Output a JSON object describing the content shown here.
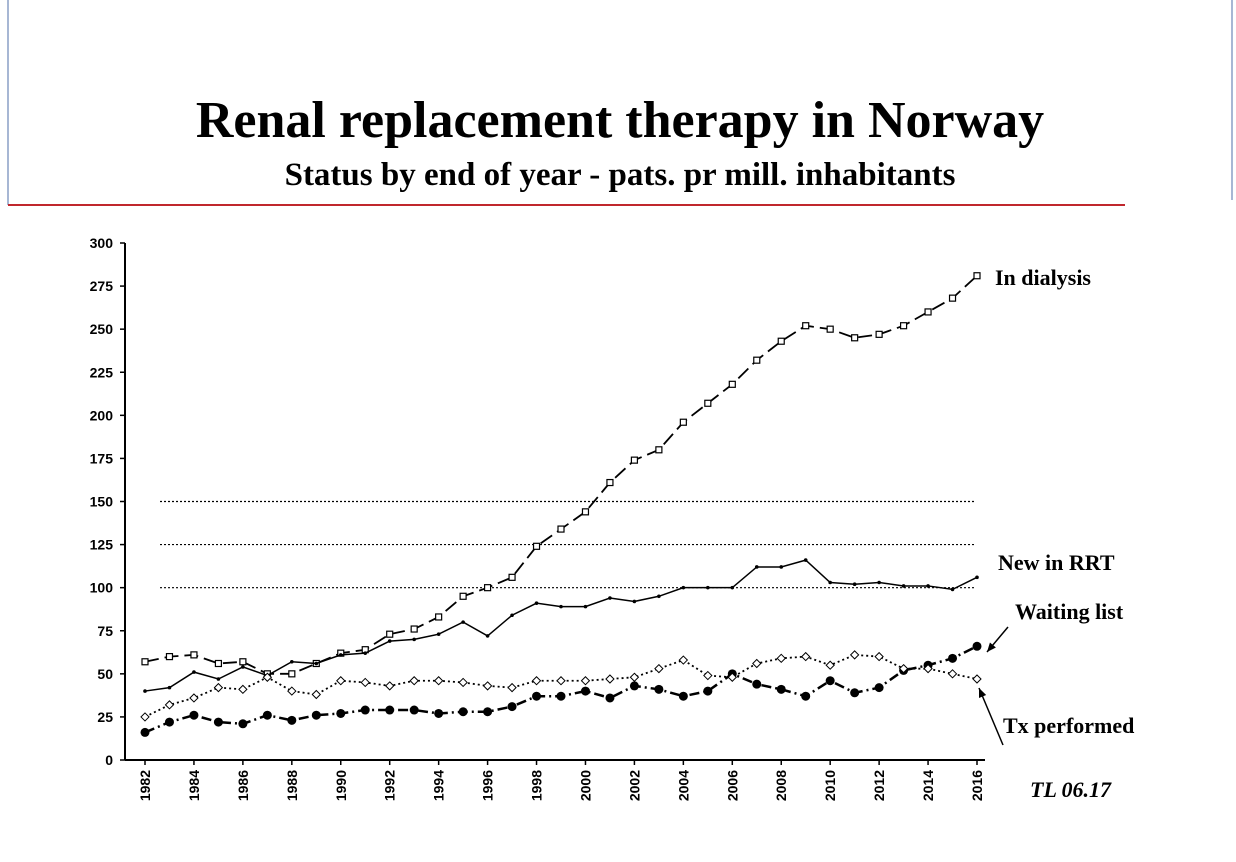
{
  "chart_data": {
    "type": "line",
    "title": "Renal replacement therapy in Norway",
    "subtitle": "Status by end of year - pats. pr mill. inhabitants",
    "note": "TL 06.17",
    "x": [
      1982,
      1983,
      1984,
      1985,
      1986,
      1987,
      1988,
      1989,
      1990,
      1991,
      1992,
      1993,
      1994,
      1995,
      1996,
      1997,
      1998,
      1999,
      2000,
      2001,
      2002,
      2003,
      2004,
      2005,
      2006,
      2007,
      2008,
      2009,
      2010,
      2011,
      2012,
      2013,
      2014,
      2015,
      2016
    ],
    "xlim": [
      1982,
      2016
    ],
    "xticks": [
      1982,
      1984,
      1986,
      1988,
      1990,
      1992,
      1994,
      1996,
      1998,
      2000,
      2002,
      2004,
      2006,
      2008,
      2010,
      2012,
      2014,
      2016
    ],
    "ylim": [
      0,
      300
    ],
    "yticks": [
      0,
      25,
      50,
      75,
      100,
      125,
      150,
      175,
      200,
      225,
      250,
      275,
      300
    ],
    "gridlines": [
      100,
      125,
      150
    ],
    "series": [
      {
        "name": "In dialysis",
        "color": "#000000",
        "style": "dashed",
        "marker": "open-square",
        "values": [
          57,
          60,
          61,
          56,
          57,
          50,
          50,
          56,
          62,
          64,
          73,
          76,
          83,
          95,
          100,
          106,
          124,
          134,
          144,
          161,
          174,
          180,
          196,
          207,
          218,
          232,
          243,
          252,
          250,
          245,
          247,
          252,
          260,
          268,
          281
        ]
      },
      {
        "name": "New in RRT",
        "color": "#000000",
        "style": "solid",
        "marker": "dot",
        "values": [
          40,
          42,
          51,
          47,
          54,
          49,
          57,
          56,
          61,
          62,
          69,
          70,
          73,
          80,
          72,
          84,
          91,
          89,
          89,
          94,
          92,
          95,
          100,
          100,
          100,
          112,
          112,
          116,
          103,
          102,
          103,
          101,
          101,
          99,
          106
        ]
      },
      {
        "name": "Waiting list",
        "color": "#000000",
        "style": "dashdot",
        "marker": "filled-circle",
        "values": [
          16,
          22,
          26,
          22,
          21,
          26,
          23,
          26,
          27,
          29,
          29,
          29,
          27,
          28,
          28,
          31,
          37,
          37,
          40,
          36,
          43,
          41,
          37,
          40,
          50,
          44,
          41,
          37,
          46,
          39,
          42,
          52,
          55,
          59,
          66
        ]
      },
      {
        "name": "Tx performed",
        "color": "#000000",
        "style": "dotted",
        "marker": "open-diamond",
        "values": [
          25,
          32,
          36,
          42,
          41,
          48,
          40,
          38,
          46,
          45,
          43,
          46,
          46,
          45,
          43,
          42,
          46,
          46,
          46,
          47,
          48,
          53,
          58,
          49,
          48,
          56,
          59,
          60,
          55,
          61,
          60,
          53,
          53,
          50,
          47
        ]
      }
    ]
  }
}
